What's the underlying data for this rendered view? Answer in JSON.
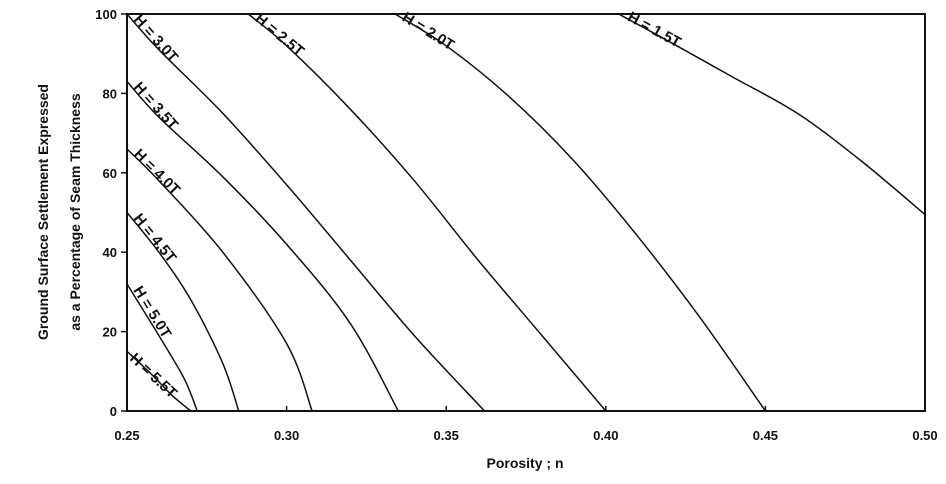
{
  "chart_data": {
    "type": "line",
    "xlabel": "Porosity ; n",
    "ylabel_lines": [
      "Ground Surface Settlement Expressed",
      "as a Percentage of Seam Thickness"
    ],
    "xlim": [
      0.25,
      0.5
    ],
    "ylim": [
      0,
      100
    ],
    "x_ticks": [
      0.25,
      0.3,
      0.35,
      0.4,
      0.45,
      0.5
    ],
    "x_tick_labels": [
      "0.25",
      "0.30",
      "0.35",
      "0.40",
      "0.45",
      "0.50"
    ],
    "y_ticks": [
      0,
      20,
      40,
      60,
      80,
      100
    ],
    "y_tick_labels": [
      "0",
      "20",
      "40",
      "60",
      "80",
      "100"
    ],
    "grid": false,
    "series": [
      {
        "name": "H = 1.5T",
        "x": [
          0.404,
          0.42,
          0.44,
          0.46,
          0.48,
          0.5
        ],
        "y": [
          100,
          93,
          84,
          75,
          63,
          49.5
        ]
      },
      {
        "name": "H = 2.0T",
        "x": [
          0.334,
          0.35,
          0.37,
          0.39,
          0.41,
          0.43,
          0.45
        ],
        "y": [
          100,
          92,
          79,
          63,
          44,
          23,
          0
        ]
      },
      {
        "name": "H = 2.5T",
        "x": [
          0.288,
          0.3,
          0.32,
          0.34,
          0.36,
          0.38,
          0.4
        ],
        "y": [
          100,
          92,
          76,
          58,
          38,
          19,
          0
        ]
      },
      {
        "name": "H = 3.0T",
        "x": [
          0.25,
          0.26,
          0.28,
          0.3,
          0.32,
          0.34,
          0.362
        ],
        "y": [
          100,
          91,
          75,
          57,
          38,
          19,
          0
        ]
      },
      {
        "name": "H = 3.5T",
        "x": [
          0.25,
          0.26,
          0.28,
          0.3,
          0.32,
          0.335
        ],
        "y": [
          83,
          74,
          59,
          42,
          22,
          0
        ]
      },
      {
        "name": "H = 4.0T",
        "x": [
          0.25,
          0.26,
          0.28,
          0.3,
          0.308
        ],
        "y": [
          66,
          58,
          40,
          17,
          0
        ]
      },
      {
        "name": "H = 4.5T",
        "x": [
          0.25,
          0.26,
          0.27,
          0.28,
          0.285
        ],
        "y": [
          50,
          40,
          28,
          12,
          0
        ]
      },
      {
        "name": "H = 5.0T",
        "x": [
          0.25,
          0.26,
          0.268,
          0.272
        ],
        "y": [
          32,
          19,
          8,
          0
        ]
      },
      {
        "name": "H = 5.5T",
        "x": [
          0.25,
          0.258,
          0.264,
          0.27
        ],
        "y": [
          15,
          9,
          4,
          0
        ]
      }
    ]
  }
}
